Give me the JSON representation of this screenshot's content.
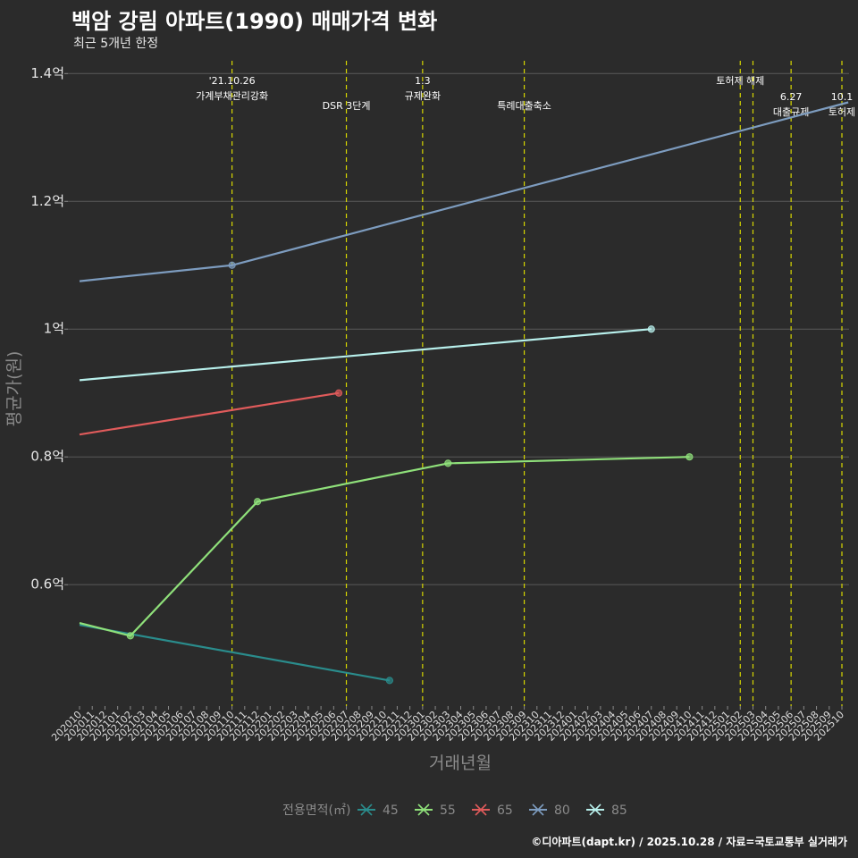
{
  "header": {
    "title": "백암 강림 아파트(1990) 매매가격 변화",
    "subtitle": "최근 5개년 한정"
  },
  "footer": {
    "caption": "©디아파트(dapt.kr) / 2025.10.28 / 자료=국토교통부 실거래가"
  },
  "chart_data": {
    "type": "line",
    "title": "백암 강림 아파트(1990) 매매가격 변화",
    "subtitle": "최근 5개년 한정",
    "xlabel": "거래년월",
    "ylabel": "평균가(원)",
    "x_categories": [
      "202010",
      "202011",
      "202012",
      "202101",
      "202102",
      "202103",
      "202104",
      "202105",
      "202106",
      "202107",
      "202108",
      "202109",
      "202110",
      "202111",
      "202112",
      "202201",
      "202202",
      "202203",
      "202204",
      "202205",
      "202206",
      "202207",
      "202208",
      "202209",
      "202210",
      "202211",
      "202212",
      "202301",
      "202302",
      "202303",
      "202304",
      "202305",
      "202306",
      "202307",
      "202308",
      "202309",
      "202310",
      "202311",
      "202312",
      "202401",
      "202402",
      "202403",
      "202404",
      "202405",
      "202406",
      "202407",
      "202408",
      "202409",
      "202410",
      "202411",
      "202412",
      "202501",
      "202502",
      "202503",
      "202504",
      "202505",
      "202506",
      "202507",
      "202508",
      "202509",
      "202510"
    ],
    "ylim": [
      0.41,
      1.42
    ],
    "y_ticks": [
      {
        "value": 0.6,
        "label": "0.6억"
      },
      {
        "value": 0.8,
        "label": "0.8억"
      },
      {
        "value": 1.0,
        "label": "1억"
      },
      {
        "value": 1.2,
        "label": "1.2억"
      },
      {
        "value": 1.4,
        "label": "1.4억"
      }
    ],
    "series": [
      {
        "name": "45",
        "color": "#2a8c8c",
        "points": [
          {
            "x": 0.0,
            "y": 0.537
          },
          {
            "x": 24.4,
            "y": 0.45,
            "marker": true
          }
        ]
      },
      {
        "name": "55",
        "color": "#8fe07a",
        "points": [
          {
            "x": 0.0,
            "y": 0.54
          },
          {
            "x": 4.0,
            "y": 0.52,
            "marker": true
          },
          {
            "x": 14.0,
            "y": 0.73,
            "marker": true
          },
          {
            "x": 29.0,
            "y": 0.79,
            "marker": true
          },
          {
            "x": 48.0,
            "y": 0.8,
            "marker": true
          }
        ]
      },
      {
        "name": "65",
        "color": "#e05b5b",
        "points": [
          {
            "x": 0.0,
            "y": 0.835
          },
          {
            "x": 20.4,
            "y": 0.9,
            "marker": true
          }
        ]
      },
      {
        "name": "80",
        "color": "#7d9cbf",
        "points": [
          {
            "x": 0.0,
            "y": 1.075
          },
          {
            "x": 12.0,
            "y": 1.1,
            "marker": true
          },
          {
            "x": 60.5,
            "y": 1.355
          }
        ]
      },
      {
        "name": "85",
        "color": "#b8f0ec",
        "points": [
          {
            "x": 0.0,
            "y": 0.92
          },
          {
            "x": 45.0,
            "y": 1.0,
            "marker": true
          }
        ]
      }
    ],
    "events": [
      {
        "x": 12.0,
        "lines": [
          "'21.10.26",
          "가계부채관리강화"
        ],
        "row": 0
      },
      {
        "x": 21.0,
        "lines": [
          "DSR 3단계"
        ],
        "row": 1
      },
      {
        "x": 27.0,
        "lines": [
          "1.3",
          "규제완화"
        ],
        "row": 0
      },
      {
        "x": 35.0,
        "lines": [
          "특례대출축소"
        ],
        "row": 1
      },
      {
        "x": 52.0,
        "lines": [
          "토허제 해제"
        ],
        "row": 0
      },
      {
        "x": 53.0,
        "lines": [],
        "row": 0
      },
      {
        "x": 56.0,
        "lines": [
          "6.27",
          "대출규제"
        ],
        "row": 2
      },
      {
        "x": 60.0,
        "lines": [
          "10.1",
          "토허제"
        ],
        "row": 2
      }
    ],
    "legend": {
      "title": "전용면적(㎡)",
      "position": "bottom",
      "items": [
        "45",
        "55",
        "65",
        "80",
        "85"
      ]
    }
  }
}
